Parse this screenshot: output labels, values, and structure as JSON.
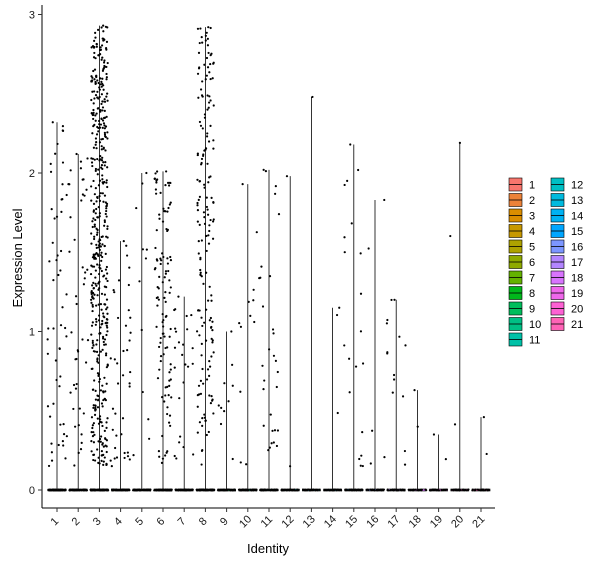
{
  "chart_data": {
    "type": "violin",
    "title": "",
    "xlabel": "Identity",
    "ylabel": "Expression Level",
    "categories": [
      "1",
      "2",
      "3",
      "4",
      "5",
      "6",
      "7",
      "8",
      "9",
      "10",
      "11",
      "12",
      "13",
      "14",
      "15",
      "16",
      "17",
      "18",
      "19",
      "20",
      "21"
    ],
    "ylim": [
      -0.15,
      3.05
    ],
    "yticks": [
      0,
      1,
      2,
      3
    ],
    "grid": false,
    "legend_position": "right",
    "legend_columns": 2,
    "colors": [
      "#F8766D",
      "#EC8239",
      "#DB8E00",
      "#C79800",
      "#AEA200",
      "#8FAA00",
      "#64B200",
      "#00B81B",
      "#00BD5C",
      "#00C085",
      "#00C1A7",
      "#00BFC4",
      "#00BADE",
      "#00B2F3",
      "#00A6FF",
      "#7C96FF",
      "#B385FF",
      "#D874FD",
      "#EF67EB",
      "#FD61D3",
      "#FF63B6"
    ],
    "groups": [
      {
        "name": "1",
        "n_positive": 55,
        "max": 2.32,
        "n_zero": 120
      },
      {
        "name": "2",
        "n_positive": 45,
        "max": 2.12,
        "n_zero": 110
      },
      {
        "name": "3",
        "n_positive": 480,
        "max": 2.93,
        "n_zero": 150
      },
      {
        "name": "4",
        "n_positive": 40,
        "max": 1.57,
        "n_zero": 100
      },
      {
        "name": "5",
        "n_positive": 12,
        "max": 2.0,
        "n_zero": 80
      },
      {
        "name": "6",
        "n_positive": 110,
        "max": 2.01,
        "n_zero": 110
      },
      {
        "name": "7",
        "n_positive": 25,
        "max": 1.22,
        "n_zero": 90
      },
      {
        "name": "8",
        "n_positive": 170,
        "max": 2.92,
        "n_zero": 130
      },
      {
        "name": "9",
        "n_positive": 10,
        "max": 1.0,
        "n_zero": 70
      },
      {
        "name": "10",
        "n_positive": 12,
        "max": 1.93,
        "n_zero": 70
      },
      {
        "name": "11",
        "n_positive": 30,
        "max": 2.02,
        "n_zero": 80
      },
      {
        "name": "12",
        "n_positive": 2,
        "max": 1.98,
        "n_zero": 60
      },
      {
        "name": "13",
        "n_positive": 1,
        "max": 2.48,
        "n_zero": 50
      },
      {
        "name": "14",
        "n_positive": 3,
        "max": 1.15,
        "n_zero": 50
      },
      {
        "name": "15",
        "n_positive": 20,
        "max": 2.18,
        "n_zero": 60
      },
      {
        "name": "16",
        "n_positive": 5,
        "max": 1.83,
        "n_zero": 50
      },
      {
        "name": "17",
        "n_positive": 14,
        "max": 1.2,
        "n_zero": 50
      },
      {
        "name": "18",
        "n_positive": 2,
        "max": 0.63,
        "n_zero": 40
      },
      {
        "name": "19",
        "n_positive": 2,
        "max": 0.35,
        "n_zero": 40
      },
      {
        "name": "20",
        "n_positive": 3,
        "max": 2.19,
        "n_zero": 45
      },
      {
        "name": "21",
        "n_positive": 2,
        "max": 0.46,
        "n_zero": 40
      }
    ]
  }
}
